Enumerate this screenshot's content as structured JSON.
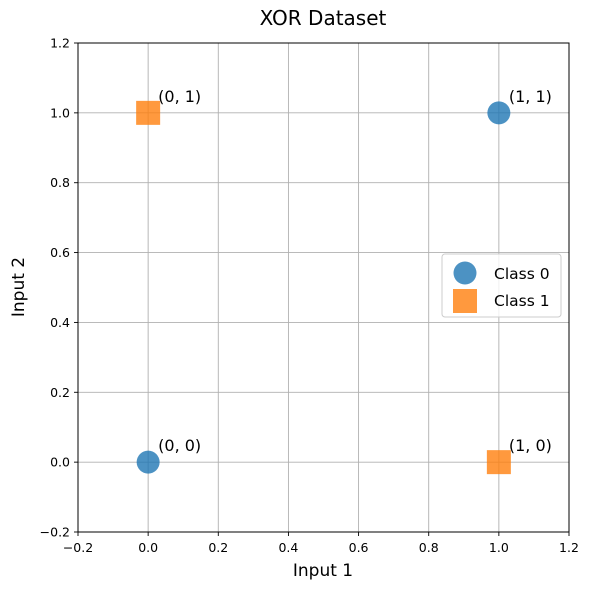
{
  "chart_data": {
    "type": "scatter",
    "title": "XOR Dataset",
    "xlabel": "Input 1",
    "ylabel": "Input 2",
    "xlim": [
      -0.2,
      1.2
    ],
    "ylim": [
      -0.2,
      1.2
    ],
    "xticks": [
      -0.2,
      0.0,
      0.2,
      0.4,
      0.6,
      0.8,
      1.0,
      1.2
    ],
    "yticks": [
      -0.2,
      0.0,
      0.2,
      0.4,
      0.6,
      0.8,
      1.0,
      1.2
    ],
    "xtick_labels": [
      "−0.2",
      "0.0",
      "0.2",
      "0.4",
      "0.6",
      "0.8",
      "1.0",
      "1.2"
    ],
    "ytick_labels": [
      "−0.2",
      "0.0",
      "0.2",
      "0.4",
      "0.6",
      "0.8",
      "1.0",
      "1.2"
    ],
    "grid": true,
    "legend_position": "center-right",
    "series": [
      {
        "name": "Class 0",
        "marker": "circle",
        "color": "#1f77b4",
        "points": [
          {
            "x": 0,
            "y": 0
          },
          {
            "x": 1,
            "y": 1
          }
        ]
      },
      {
        "name": "Class 1",
        "marker": "square",
        "color": "#ff7f0e",
        "points": [
          {
            "x": 0,
            "y": 1
          },
          {
            "x": 1,
            "y": 0
          }
        ]
      }
    ],
    "annotations": [
      {
        "text": "(0, 0)",
        "x": 0,
        "y": 0
      },
      {
        "text": "(0, 1)",
        "x": 0,
        "y": 1
      },
      {
        "text": "(1, 0)",
        "x": 1,
        "y": 0
      },
      {
        "text": "(1, 1)",
        "x": 1,
        "y": 1
      }
    ]
  }
}
